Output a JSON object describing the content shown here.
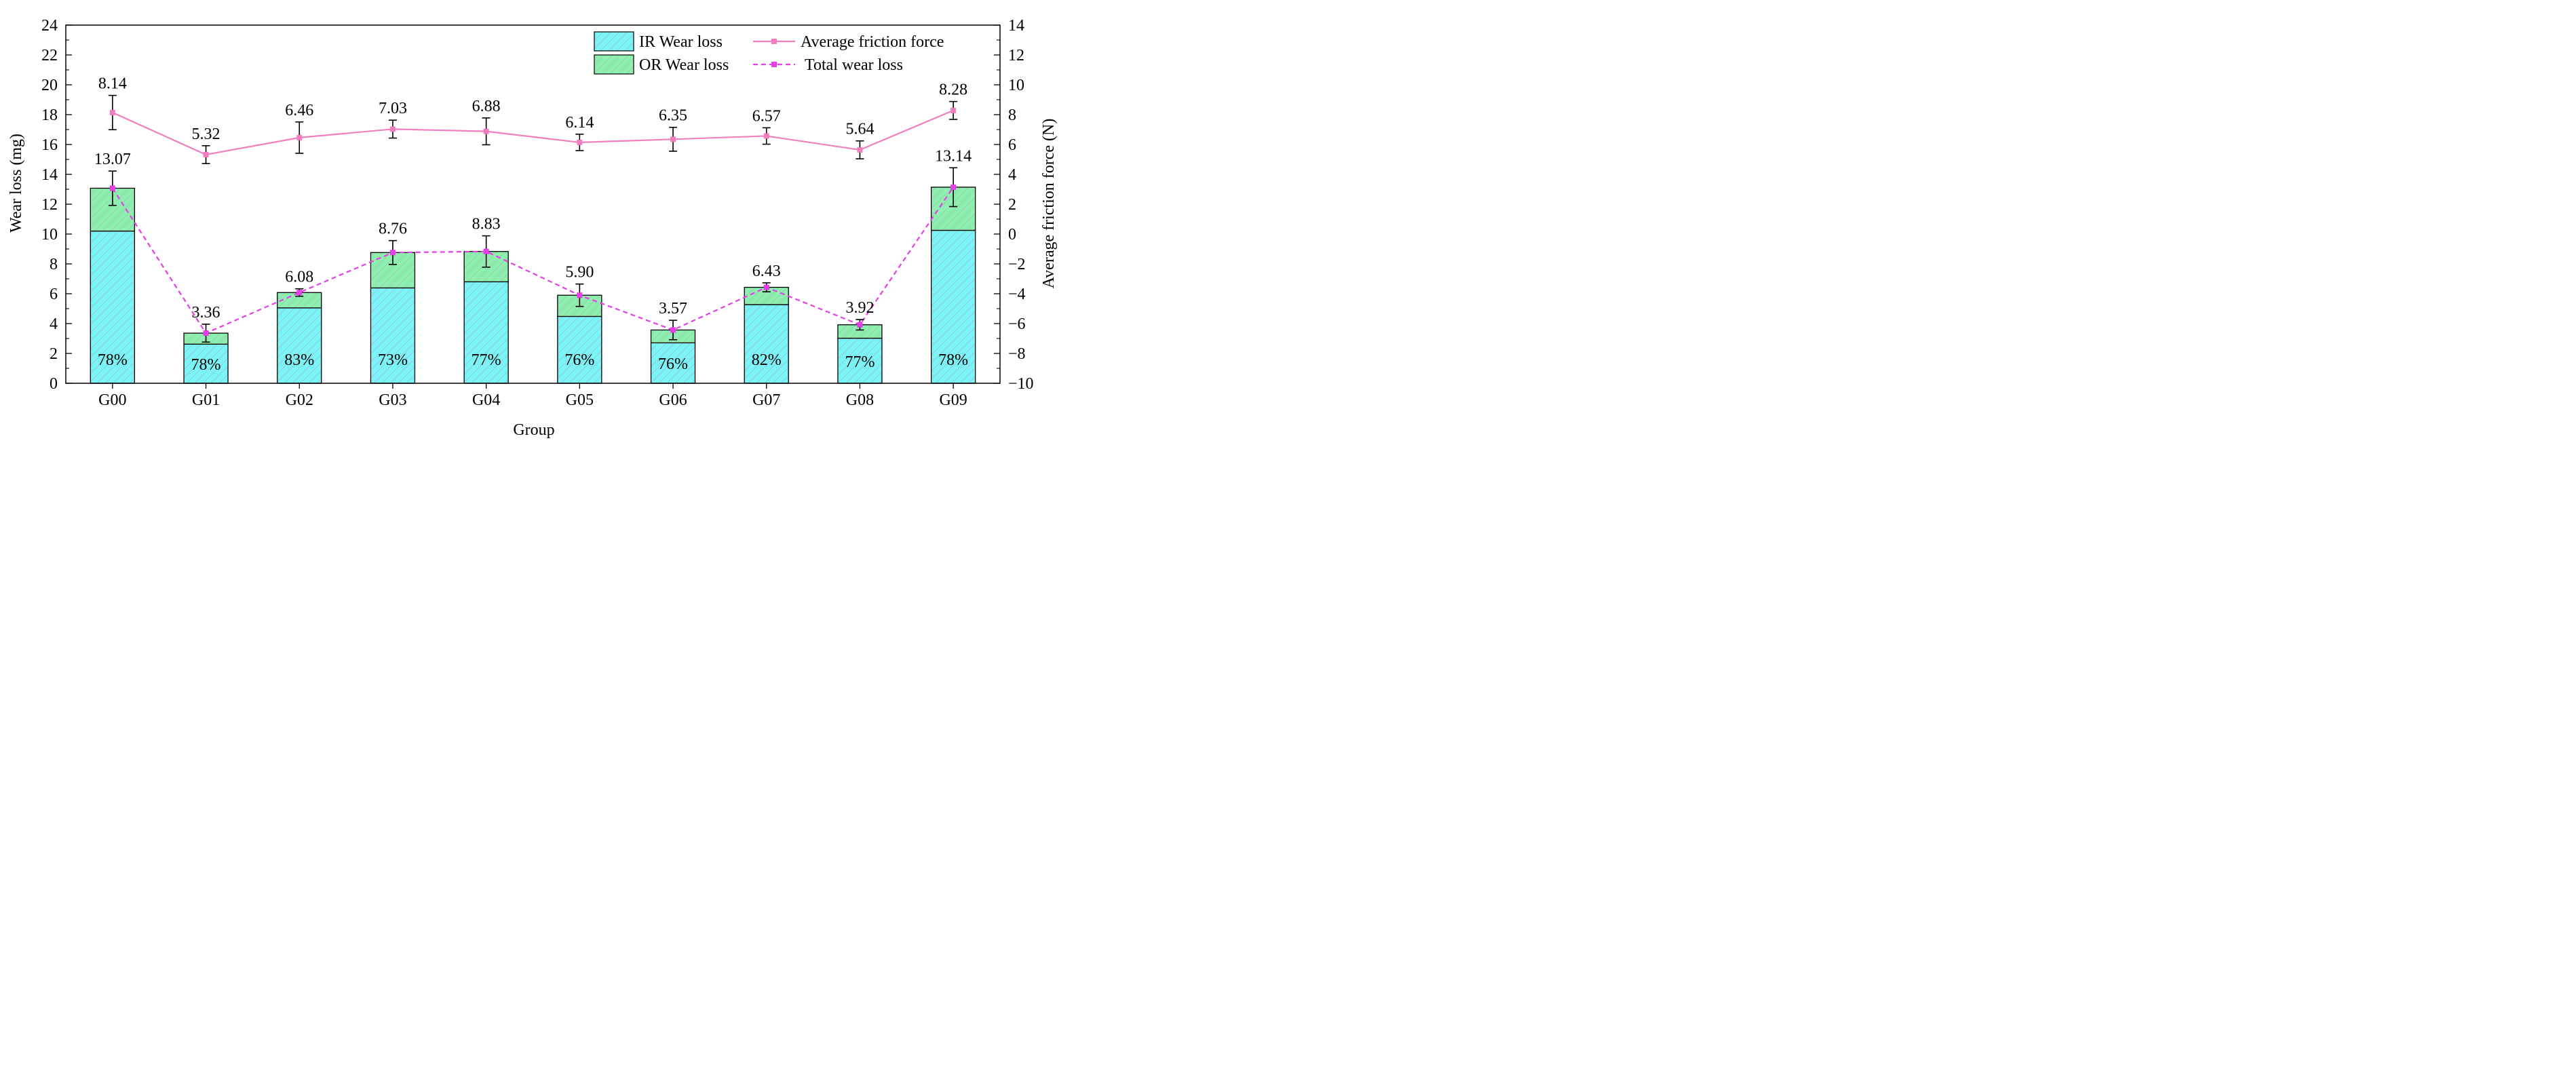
{
  "chart_data": {
    "type": "bar",
    "stacked": true,
    "categories": [
      "G00",
      "G01",
      "G02",
      "G03",
      "G04",
      "G05",
      "G06",
      "G07",
      "G08",
      "G09"
    ],
    "xlabel": "Group",
    "ylabel": "Wear loss (mg)",
    "ylabel_right": "Average friction force (N)",
    "ylim": [
      0,
      24
    ],
    "yticks": [
      0,
      2,
      4,
      6,
      8,
      10,
      12,
      14,
      16,
      18,
      20,
      22,
      24
    ],
    "ylim_right": [
      -10,
      14
    ],
    "yticks_right": [
      -10,
      -8,
      -6,
      -4,
      -2,
      0,
      2,
      4,
      6,
      8,
      10,
      12,
      14
    ],
    "bar_series": [
      {
        "name": "IR Wear loss",
        "color": "#7af5f5",
        "values": [
          10.2,
          2.62,
          5.05,
          6.39,
          6.8,
          4.48,
          2.71,
          5.27,
          3.02,
          10.25
        ]
      },
      {
        "name": "OR Wear loss",
        "color": "#8ef0b0",
        "values": [
          2.87,
          0.74,
          1.03,
          2.37,
          2.03,
          1.42,
          0.86,
          1.16,
          0.9,
          2.89
        ]
      }
    ],
    "bar_percent_labels": [
      "78%",
      "78%",
      "83%",
      "73%",
      "77%",
      "76%",
      "76%",
      "82%",
      "77%",
      "78%"
    ],
    "line_series": [
      {
        "name": "Average friction force",
        "axis": "right",
        "color": "#f27ec0",
        "style": "solid",
        "values": [
          8.14,
          5.32,
          6.46,
          7.03,
          6.88,
          6.14,
          6.35,
          6.57,
          5.64,
          8.28
        ],
        "labels": [
          "8.14",
          "5.32",
          "6.46",
          "7.03",
          "6.88",
          "6.14",
          "6.35",
          "6.57",
          "5.64",
          "8.28"
        ],
        "errors": [
          1.15,
          0.6,
          1.05,
          0.6,
          0.9,
          0.55,
          0.8,
          0.55,
          0.6,
          0.6
        ]
      },
      {
        "name": "Total wear loss",
        "axis": "left",
        "color": "#e83ee8",
        "style": "dashed",
        "values": [
          13.07,
          3.36,
          6.08,
          8.76,
          8.83,
          5.9,
          3.57,
          6.43,
          3.92,
          13.14
        ],
        "labels": [
          "13.07",
          "3.36",
          "6.08",
          "8.76",
          "8.83",
          "5.90",
          "3.57",
          "6.43",
          "3.92",
          "13.14"
        ],
        "errors": [
          1.15,
          0.6,
          0.25,
          0.8,
          1.05,
          0.75,
          0.65,
          0.3,
          0.35,
          1.3
        ]
      }
    ],
    "legend": [
      "IR Wear loss",
      "OR Wear loss",
      "Average friction force",
      "Total wear loss"
    ],
    "legend_position": "top-right",
    "grid": false
  }
}
